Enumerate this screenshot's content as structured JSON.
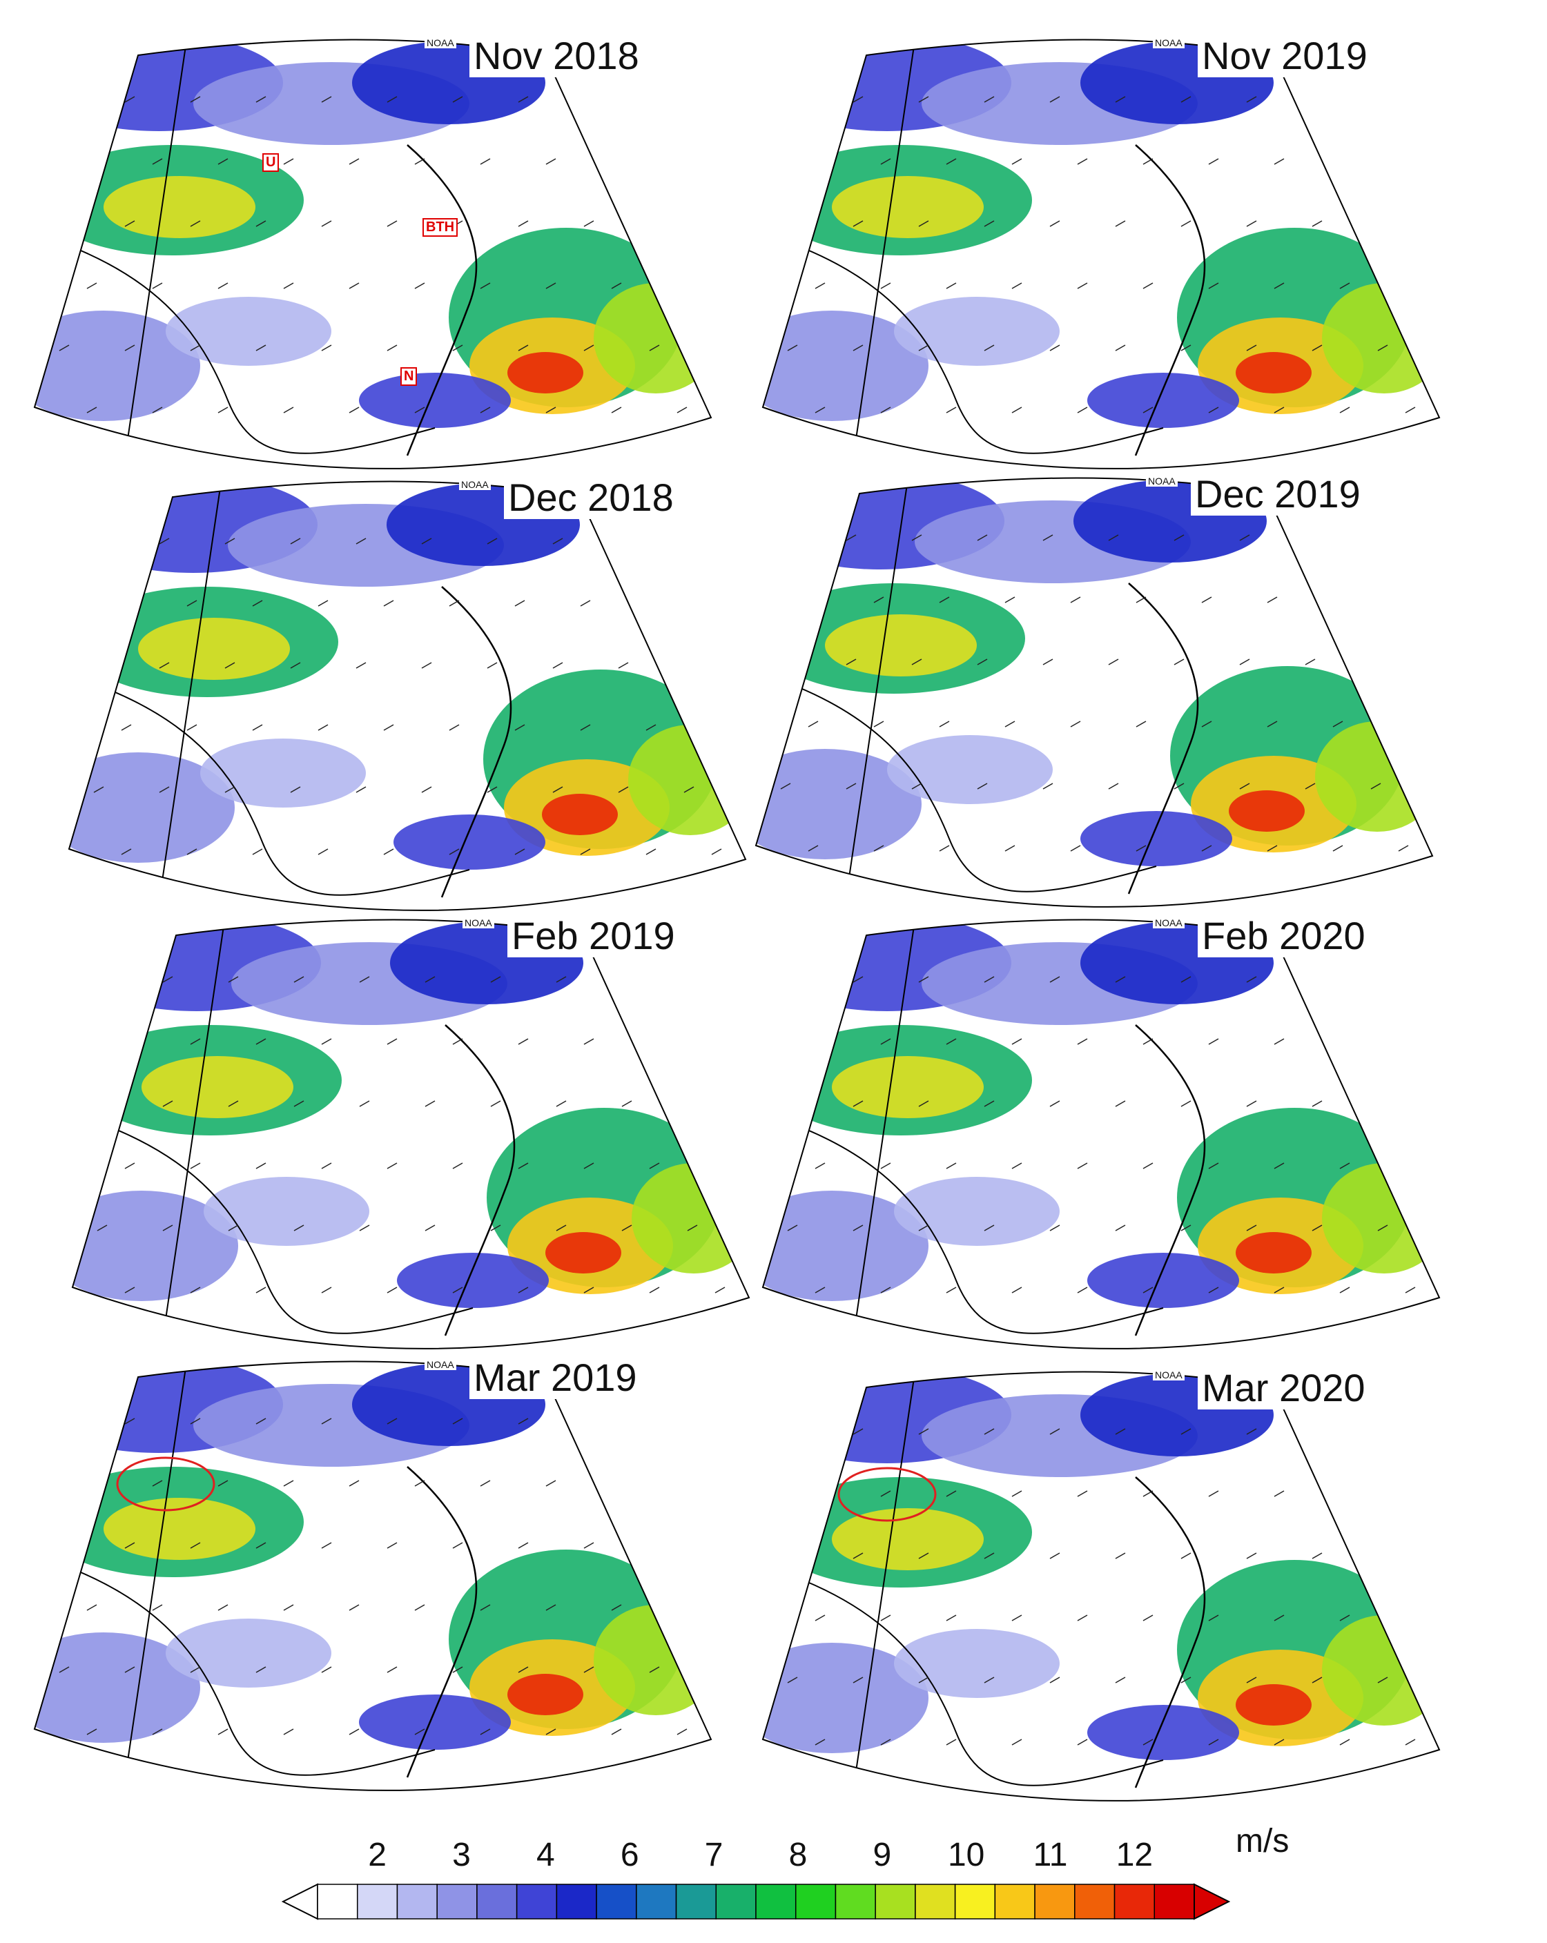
{
  "panels": [
    {
      "id": "nov-2018",
      "title": "Nov 2018",
      "source": "NOAA"
    },
    {
      "id": "nov-2019",
      "title": "Nov 2019",
      "source": "NOAA"
    },
    {
      "id": "dec-2018",
      "title": "Dec 2018",
      "source": "NOAA"
    },
    {
      "id": "dec-2019",
      "title": "Dec 2019",
      "source": "NOAA"
    },
    {
      "id": "feb-2019",
      "title": "Feb 2019",
      "source": "NOAA"
    },
    {
      "id": "feb-2020",
      "title": "Feb 2020",
      "source": "NOAA"
    },
    {
      "id": "mar-2019",
      "title": "Mar 2019",
      "source": "NOAA"
    },
    {
      "id": "mar-2020",
      "title": "Mar 2020",
      "source": "NOAA"
    }
  ],
  "region_labels": {
    "u": "U",
    "bth": "BTH",
    "n": "N"
  },
  "colorbar": {
    "ticks": [
      "2",
      "3",
      "4",
      "6",
      "7",
      "8",
      "9",
      "10",
      "11",
      "12"
    ],
    "unit": "m/s",
    "colors": [
      "#ffffff",
      "#d4d7f7",
      "#b3b7f0",
      "#8f93e6",
      "#6a6fdc",
      "#3f44d6",
      "#1b28c8",
      "#1650c8",
      "#1e78c0",
      "#1a9a96",
      "#18b06a",
      "#10c040",
      "#1fd020",
      "#60dc20",
      "#a8e020",
      "#e0e020",
      "#f8f020",
      "#f8c818",
      "#f89810",
      "#f06008",
      "#e82808",
      "#d80000"
    ]
  },
  "colors": {
    "region_label": "#e00000",
    "ring": "#e02020"
  }
}
